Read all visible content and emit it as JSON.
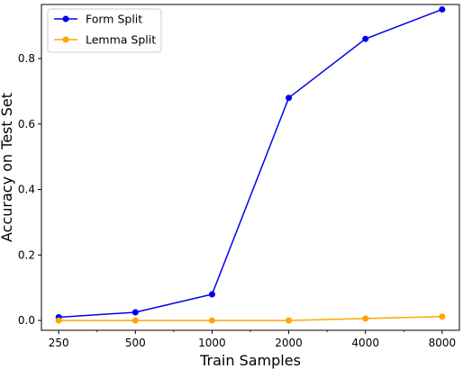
{
  "chart_data": {
    "type": "line",
    "x_scale": "log2",
    "x": [
      250,
      500,
      1000,
      2000,
      4000,
      8000
    ],
    "x_tick_labels": [
      "250",
      "500",
      "1000",
      "2000",
      "4000",
      "8000"
    ],
    "xlabel": "Train Samples",
    "ylabel": "Accuracy on Test Set",
    "ylim": [
      -0.03,
      0.965
    ],
    "y_ticks": [
      0.0,
      0.2,
      0.4,
      0.6,
      0.8
    ],
    "y_tick_labels": [
      "0.0",
      "0.2",
      "0.4",
      "0.6",
      "0.8"
    ],
    "grid": false,
    "legend": "top-left",
    "series": [
      {
        "name": "Form Split",
        "color": "#0000ee",
        "values": [
          0.01,
          0.025,
          0.08,
          0.68,
          0.86,
          0.95
        ]
      },
      {
        "name": "Lemma Split",
        "color": "#ffa500",
        "values": [
          0.0,
          0.0,
          0.0,
          0.0,
          0.006,
          0.012
        ]
      }
    ]
  }
}
